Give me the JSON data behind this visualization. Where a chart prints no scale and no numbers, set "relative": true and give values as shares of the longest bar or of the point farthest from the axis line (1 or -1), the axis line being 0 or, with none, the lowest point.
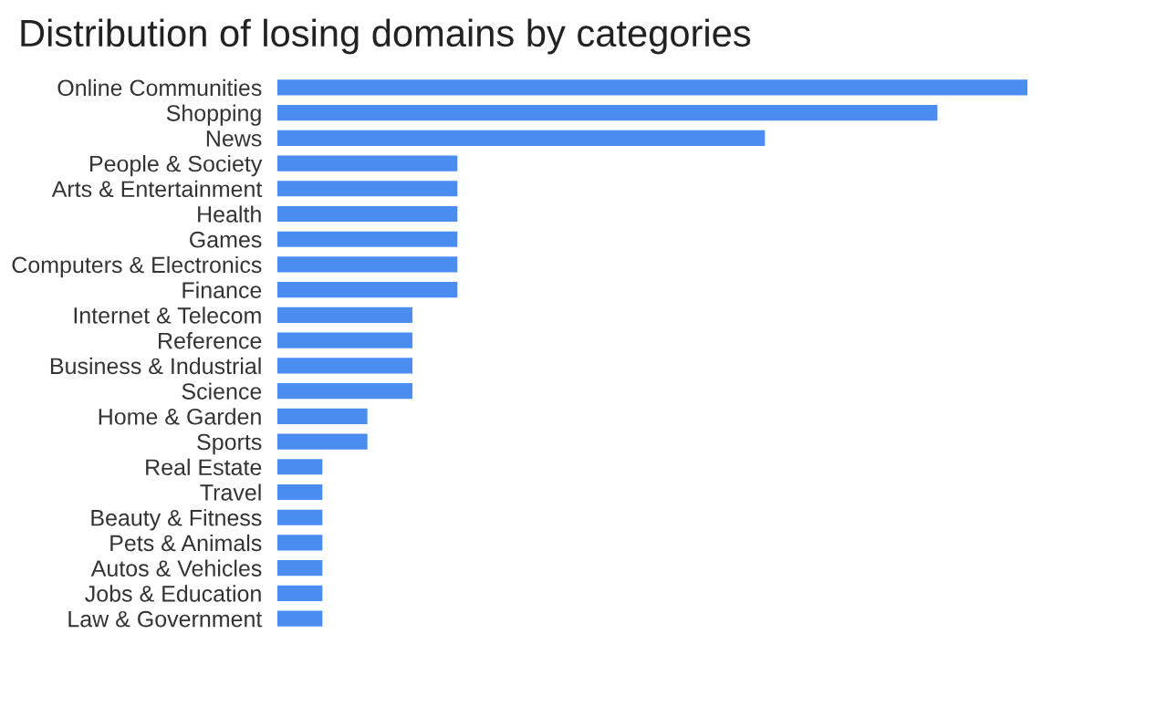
{
  "chart_data": {
    "type": "bar",
    "orientation": "horizontal",
    "relative": true,
    "title": "Distribution of losing domains by categories",
    "categories": [
      "Online Communities",
      "Shopping",
      "News",
      "People & Society",
      "Arts & Entertainment",
      "Health",
      "Games",
      "Computers & Electronics",
      "Finance",
      "Internet & Telecom",
      "Reference",
      "Business & Industrial",
      "Science",
      "Home & Garden",
      "Sports",
      "Real Estate",
      "Travel",
      "Beauty & Fitness",
      "Pets & Animals",
      "Autos & Vehicles",
      "Jobs & Education",
      "Law & Government"
    ],
    "values": [
      1,
      0.88,
      0.65,
      0.24,
      0.24,
      0.24,
      0.24,
      0.24,
      0.24,
      0.18,
      0.18,
      0.18,
      0.18,
      0.12,
      0.12,
      0.06,
      0.06,
      0.06,
      0.06,
      0.06,
      0.06,
      0.06
    ],
    "color": "#4a8cf0",
    "grid": false,
    "legend": false
  }
}
